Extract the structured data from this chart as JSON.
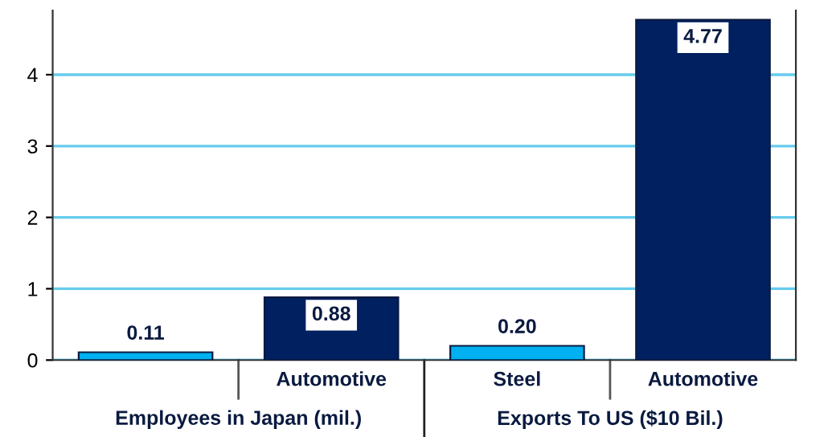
{
  "chart_data": {
    "type": "bar",
    "categories": [
      null,
      "Automotive",
      "Steel",
      "Automotive"
    ],
    "values": [
      0.11,
      0.88,
      0.2,
      4.77
    ],
    "value_labels": [
      "0.11",
      "0.88",
      "0.20",
      "4.77"
    ],
    "colors": [
      "#00b0f0",
      "#002060",
      "#00b0f0",
      "#002060"
    ],
    "ylim": [
      0,
      4.9
    ],
    "yticks": [
      0,
      1,
      2,
      3,
      4
    ],
    "grid": "y",
    "annotations": [
      "Employees in Japan (mil.)",
      "Exports To US ($10 Bil.)"
    ]
  }
}
